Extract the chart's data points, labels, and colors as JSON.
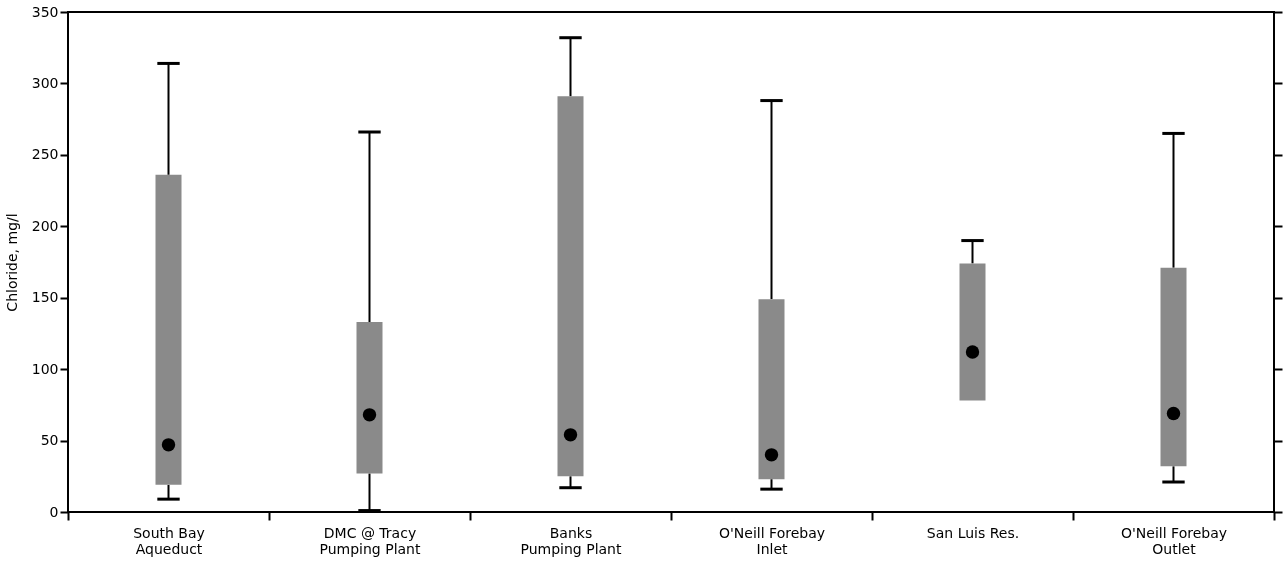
{
  "chart_data": {
    "type": "box",
    "ylabel": "Chloride, mg/l",
    "categories": [
      "South Bay\nAqueduct",
      "DMC @ Tracy\nPumping Plant",
      "Banks\nPumping Plant",
      "O'Neill Forebay\nInlet",
      "San Luis Res.",
      "O'Neill Forebay\nOutlet"
    ],
    "series": [
      {
        "color": "#8a8a8a",
        "boxes": [
          {
            "low": 9,
            "q1": 19,
            "median": 47,
            "q3": 236,
            "high": 314
          },
          {
            "low": 1,
            "q1": 27,
            "median": 68,
            "q3": 133,
            "high": 266
          },
          {
            "low": 17,
            "q1": 25,
            "median": 54,
            "q3": 291,
            "high": 332
          },
          {
            "low": 16,
            "q1": 23,
            "median": 40,
            "q3": 149,
            "high": 288
          },
          {
            "low": 78,
            "q1": 78,
            "median": 112,
            "q3": 174,
            "high": 190
          },
          {
            "low": 21,
            "q1": 32,
            "median": 69,
            "q3": 171,
            "high": 265
          }
        ]
      }
    ],
    "ylim": [
      0,
      350
    ],
    "yticks": [
      0,
      50,
      100,
      150,
      200,
      250,
      300,
      350
    ],
    "grid": false
  }
}
